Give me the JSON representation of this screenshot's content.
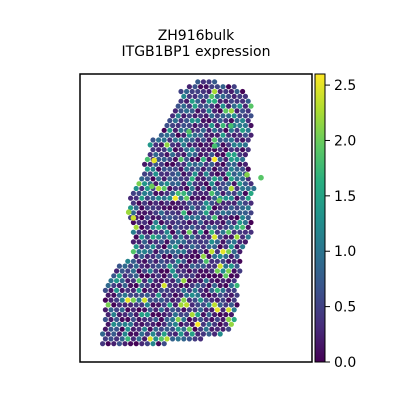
{
  "chart_data": {
    "type": "scatter",
    "title": "ZH916bulk",
    "subtitle": "ITGB1BP1 expression",
    "xlabel": "",
    "ylabel": "",
    "colormap": "viridis",
    "colorbar": {
      "min": 0.0,
      "max": 2.6,
      "ticks": [
        "0.0",
        "0.5",
        "1.0",
        "1.5",
        "2.0",
        "2.5"
      ],
      "tick_values": [
        0.0,
        0.5,
        1.0,
        1.5,
        2.0,
        2.5
      ]
    },
    "grid": false,
    "legend": "colorbar-right",
    "region_outline": [
      [
        0.44,
        0.05
      ],
      [
        0.5,
        0.02
      ],
      [
        0.62,
        0.03
      ],
      [
        0.7,
        0.05
      ],
      [
        0.74,
        0.09
      ],
      [
        0.74,
        0.2
      ],
      [
        0.72,
        0.3
      ],
      [
        0.75,
        0.4
      ],
      [
        0.74,
        0.55
      ],
      [
        0.7,
        0.62
      ],
      [
        0.69,
        0.7
      ],
      [
        0.68,
        0.8
      ],
      [
        0.66,
        0.88
      ],
      [
        0.6,
        0.91
      ],
      [
        0.45,
        0.93
      ],
      [
        0.2,
        0.95
      ],
      [
        0.09,
        0.95
      ],
      [
        0.1,
        0.85
      ],
      [
        0.11,
        0.72
      ],
      [
        0.16,
        0.66
      ],
      [
        0.22,
        0.64
      ],
      [
        0.22,
        0.55
      ],
      [
        0.21,
        0.42
      ],
      [
        0.27,
        0.33
      ],
      [
        0.3,
        0.24
      ],
      [
        0.35,
        0.2
      ],
      [
        0.4,
        0.14
      ]
    ],
    "value_bands": [
      {
        "range": [
          0.0,
          0.5
        ],
        "approx_share": 0.55
      },
      {
        "range": [
          0.5,
          1.0
        ],
        "approx_share": 0.25
      },
      {
        "range": [
          1.0,
          1.5
        ],
        "approx_share": 0.13
      },
      {
        "range": [
          1.5,
          2.6
        ],
        "approx_share": 0.07
      }
    ],
    "highlights": [
      {
        "x": 0.32,
        "y": 0.3,
        "value": 2.5
      },
      {
        "x": 0.23,
        "y": 0.5,
        "value": 2.4
      },
      {
        "x": 0.21,
        "y": 0.48,
        "value": 2.2
      },
      {
        "x": 0.72,
        "y": 0.35,
        "value": 2.1
      },
      {
        "x": 0.6,
        "y": 0.44,
        "value": 2.0
      },
      {
        "x": 0.31,
        "y": 0.39,
        "value": 2.0
      },
      {
        "x": 0.47,
        "y": 0.2,
        "value": 1.9
      },
      {
        "x": 0.78,
        "y": 0.36,
        "value": 1.9
      },
      {
        "x": 0.58,
        "y": 0.25,
        "value": 1.8
      },
      {
        "x": 0.65,
        "y": 0.18,
        "value": 1.8
      }
    ]
  }
}
